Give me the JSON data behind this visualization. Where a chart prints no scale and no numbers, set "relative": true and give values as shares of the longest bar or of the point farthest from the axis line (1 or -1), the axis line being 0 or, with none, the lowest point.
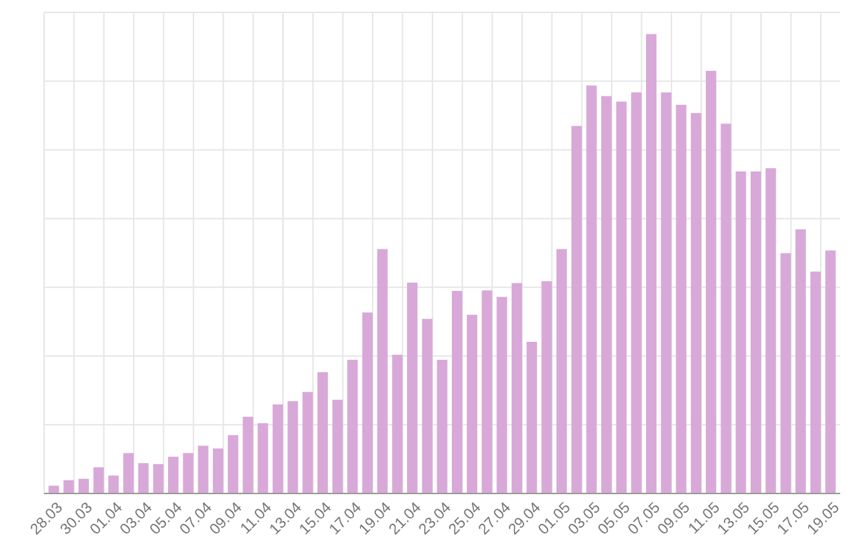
{
  "chart_data": {
    "type": "bar",
    "relative": true,
    "grid": true,
    "color": "#d8a9d8",
    "categories": [
      "28.03",
      null,
      "30.03",
      null,
      "01.04",
      null,
      "03.04",
      null,
      "05.04",
      null,
      "07.04",
      null,
      "09.04",
      null,
      "11.04",
      null,
      "13.04",
      null,
      "15.04",
      null,
      "17.04",
      null,
      "19.04",
      null,
      "21.04",
      null,
      "23.04",
      null,
      "25.04",
      null,
      "27.04",
      null,
      "29.04",
      null,
      "01.05",
      null,
      "03.05",
      null,
      "05.05",
      null,
      "07.05",
      null,
      "09.05",
      null,
      "11.05",
      null,
      "13.05",
      null,
      "15.05",
      null,
      "17.05",
      null,
      "19.05"
    ],
    "values": [
      0.017,
      0.029,
      0.032,
      0.057,
      0.039,
      0.088,
      0.066,
      0.064,
      0.08,
      0.088,
      0.104,
      0.098,
      0.127,
      0.167,
      0.153,
      0.194,
      0.201,
      0.221,
      0.264,
      0.204,
      0.291,
      0.394,
      0.532,
      0.302,
      0.459,
      0.38,
      0.291,
      0.441,
      0.389,
      0.442,
      0.428,
      0.458,
      0.33,
      0.462,
      0.532,
      0.8,
      0.888,
      0.865,
      0.853,
      0.873,
      1,
      0.873,
      0.846,
      0.828,
      0.92,
      0.805,
      0.701,
      0.701,
      0.708,
      0.523,
      0.575,
      0.483,
      0.529
    ]
  }
}
